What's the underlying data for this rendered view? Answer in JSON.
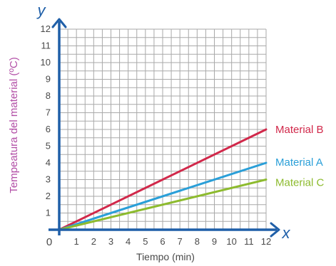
{
  "chart_data": {
    "type": "line",
    "title": "",
    "xlabel": "Tiempo (min)",
    "ylabel": "Tempeatura del material (ºC)",
    "x_axis_letter": "x",
    "y_axis_letter": "y",
    "origin_label": "0",
    "xlim": [
      0,
      12
    ],
    "ylim": [
      0,
      12
    ],
    "x_ticks": [
      1,
      2,
      3,
      4,
      5,
      6,
      7,
      8,
      9,
      10,
      11,
      12
    ],
    "y_ticks": [
      1,
      2,
      3,
      4,
      5,
      6,
      7,
      8,
      9,
      10,
      11,
      12
    ],
    "grid": true,
    "series": [
      {
        "name": "Material B",
        "color": "#d1284a",
        "points": [
          [
            0,
            0
          ],
          [
            12,
            6
          ]
        ]
      },
      {
        "name": "Material A",
        "color": "#2a9fd8",
        "points": [
          [
            0,
            0
          ],
          [
            12,
            4
          ]
        ]
      },
      {
        "name": "Material C",
        "color": "#8dbb2e",
        "points": [
          [
            0,
            0
          ],
          [
            12,
            3
          ]
        ]
      }
    ],
    "colors": {
      "axis": "#1f5fa8",
      "grid": "#a9a9a9",
      "ylabel": "#b24ea6",
      "tick": "#4a4a4a"
    }
  }
}
